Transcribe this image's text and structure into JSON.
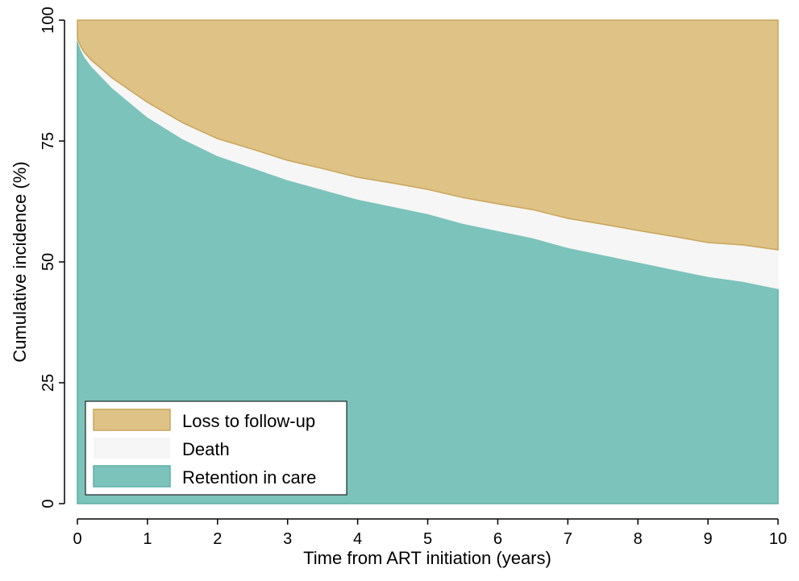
{
  "chart_data": {
    "type": "area",
    "stacked": true,
    "xlabel": "Time from ART initiation (years)",
    "ylabel": "Cumulative incidence (%)",
    "xlim": [
      0,
      10
    ],
    "ylim": [
      0,
      100
    ],
    "xticks": [
      "0",
      "1",
      "2",
      "3",
      "4",
      "5",
      "6",
      "7",
      "8",
      "9",
      "10"
    ],
    "yticks": [
      "0",
      "25",
      "50",
      "75",
      "100"
    ],
    "grid": false,
    "legend_position": "bottom-left",
    "x": [
      0,
      0.05,
      0.1,
      0.2,
      0.3,
      0.5,
      0.75,
      1,
      1.5,
      2,
      2.5,
      3,
      3.5,
      4,
      4.5,
      5,
      5.5,
      6,
      6.5,
      7,
      7.5,
      8,
      8.5,
      9,
      9.5,
      10
    ],
    "series": [
      {
        "name": "Retention in care",
        "color": "#7cc3bb",
        "edge": "#5fb0a8",
        "values": [
          96,
          94,
          92.5,
          90.5,
          89,
          86,
          83,
          80,
          75.5,
          72,
          69.5,
          67,
          65,
          63,
          61.5,
          60,
          58,
          56.5,
          55,
          53,
          51.5,
          50,
          48.5,
          47,
          46,
          44.5
        ]
      },
      {
        "name": "Death",
        "color": "#f6f6f6",
        "edge": "#f6f6f6",
        "values": [
          0.2,
          0.5,
          0.8,
          1.2,
          1.5,
          2,
          2.5,
          3,
          3.3,
          3.5,
          3.8,
          4,
          4.3,
          4.5,
          4.8,
          5,
          5.3,
          5.5,
          5.8,
          6,
          6.3,
          6.5,
          6.8,
          7,
          7.5,
          8
        ]
      },
      {
        "name": "Loss to follow-up",
        "color": "#dfc286",
        "edge": "#c9a55a",
        "values": [
          3.8,
          5.5,
          6.7,
          8.3,
          9.5,
          12,
          14.5,
          17,
          21.2,
          24.5,
          26.7,
          29,
          30.7,
          32.5,
          33.7,
          35,
          36.7,
          38,
          39.2,
          41,
          42.2,
          43.5,
          44.7,
          46,
          46.5,
          47.5
        ]
      }
    ]
  }
}
